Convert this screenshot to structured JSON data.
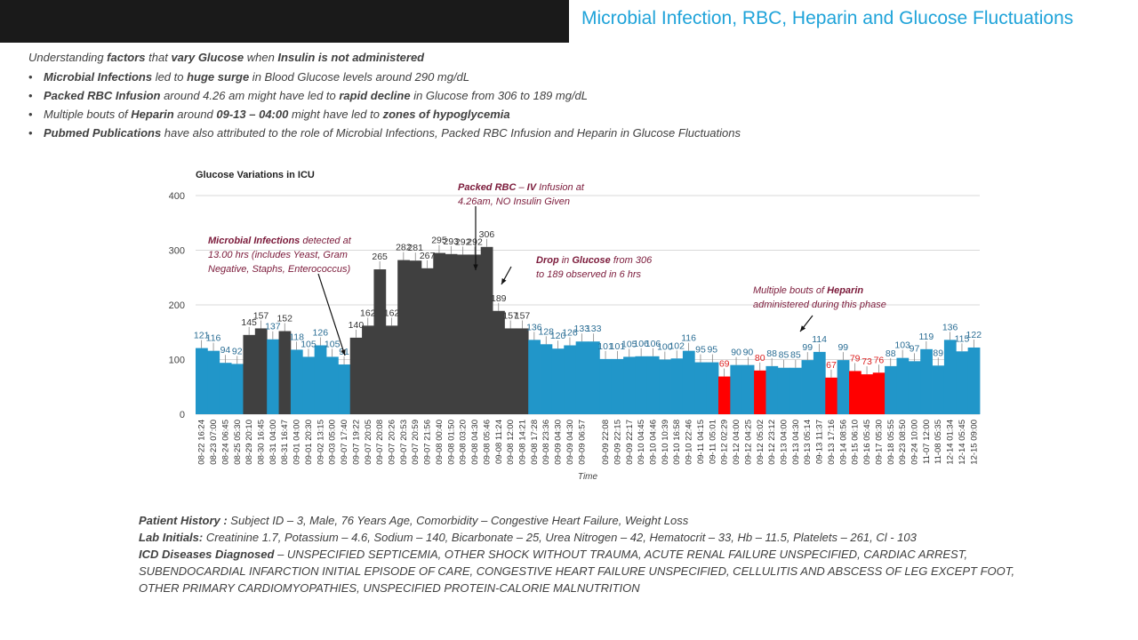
{
  "header": {
    "title": "Microbial Infection, RBC, Heparin and  Glucose Fluctuations"
  },
  "intro": [
    {
      "t": "Understanding "
    },
    {
      "t": "factors",
      "b": true
    },
    {
      "t": " that "
    },
    {
      "t": "vary Glucose",
      "b": true
    },
    {
      "t": " when "
    },
    {
      "t": "Insulin is not administered",
      "b": true
    }
  ],
  "bullets": [
    [
      {
        "t": "Microbial Infections",
        "b": true
      },
      {
        "t": " led to "
      },
      {
        "t": "huge surge",
        "b": true
      },
      {
        "t": " in Blood Glucose levels around 290 mg/dL"
      }
    ],
    [
      {
        "t": "Packed RBC Infusion",
        "b": true
      },
      {
        "t": " around 4.26 am might have led to "
      },
      {
        "t": "rapid decline",
        "b": true
      },
      {
        "t": " in Glucose from 306 to 189 mg/dL"
      }
    ],
    [
      {
        "t": "Multiple bouts of "
      },
      {
        "t": "Heparin",
        "b": true
      },
      {
        "t": " around "
      },
      {
        "t": "09-13 – 04:00",
        "b": true
      },
      {
        "t": " might have led to "
      },
      {
        "t": "zones of hypoglycemia",
        "b": true
      }
    ],
    [
      {
        "t": "Pubmed Publications",
        "b": true
      },
      {
        "t": " have also attributed to the role of Microbial Infections, Packed RBC Infusion and Heparin in Glucose Fluctuations"
      }
    ]
  ],
  "bullet_char": "•",
  "colors": {
    "title": "#1fa3d9",
    "normal": "#2196c9",
    "event": "#404040",
    "low": "#ff0000",
    "annotation": "#7b1a3a",
    "grid": "#d9d9d9"
  },
  "chart_data": {
    "type": "bar",
    "title": "Glucose Variations in ICU",
    "xlabel": "Time",
    "ylabel": "",
    "ylim": [
      0,
      400
    ],
    "yticks": [
      0,
      100,
      200,
      300,
      400
    ],
    "values": [
      121,
      116,
      94,
      92,
      145,
      157,
      137,
      152,
      118,
      105,
      126,
      105,
      91,
      140,
      162,
      265,
      162,
      282,
      281,
      267,
      295,
      293,
      292,
      292,
      306,
      189,
      157,
      157,
      136,
      128,
      120,
      126,
      133,
      133,
      101,
      101,
      105,
      106,
      106,
      100,
      102,
      116,
      95,
      95,
      69,
      90,
      90,
      80,
      88,
      85,
      85,
      99,
      114,
      67,
      99,
      79,
      73,
      76,
      88,
      103,
      97,
      119,
      89,
      136,
      115,
      122
    ],
    "value_labels": [
      "121",
      "116",
      "94",
      "92",
      "145",
      "157",
      "137",
      "152",
      "118",
      "105",
      "126",
      "105",
      "91",
      "140",
      "162",
      "265",
      "162",
      "282",
      "281",
      "267",
      "295",
      "293",
      "292",
      "292",
      "306",
      "189",
      "157",
      "157",
      "136",
      "128",
      "120",
      "126",
      "133",
      "133",
      "101",
      "101",
      "105",
      "106",
      "106",
      "100",
      "102",
      "116",
      "95",
      "95",
      "69",
      "90",
      "90",
      "80",
      "88",
      "85",
      "85",
      "99",
      "114",
      "67",
      "99",
      "79",
      "73",
      "76",
      "88",
      "103",
      "97",
      "119",
      "89",
      "136",
      "115",
      "122"
    ],
    "label_mask": [
      1,
      1,
      1,
      1,
      1,
      1,
      1,
      1,
      1,
      1,
      1,
      1,
      1,
      1,
      1,
      1,
      1,
      1,
      1,
      1,
      1,
      1,
      1,
      1,
      1,
      1,
      1,
      1,
      1,
      1,
      1,
      1,
      1,
      1,
      1,
      1,
      1,
      1,
      1,
      1,
      1,
      1,
      1,
      1,
      1,
      1,
      1,
      1,
      1,
      1,
      1,
      1,
      1,
      1,
      1,
      1,
      1,
      1,
      1,
      1,
      1,
      1,
      1,
      1,
      1,
      1
    ],
    "bar_class": [
      "n",
      "n",
      "n",
      "n",
      "e",
      "e",
      "n",
      "e",
      "n",
      "n",
      "n",
      "n",
      "n",
      "e",
      "e",
      "e",
      "e",
      "e",
      "e",
      "e",
      "e",
      "e",
      "e",
      "e",
      "e",
      "e",
      "e",
      "e",
      "n",
      "n",
      "n",
      "n",
      "n",
      "n",
      "n",
      "n",
      "n",
      "n",
      "n",
      "n",
      "n",
      "n",
      "n",
      "n",
      "r",
      "n",
      "n",
      "r",
      "n",
      "n",
      "n",
      "n",
      "n",
      "r",
      "n",
      "r",
      "r",
      "r",
      "n",
      "n",
      "n",
      "n",
      "n",
      "n",
      "n",
      "n"
    ],
    "ticks": [
      {
        "i": 0,
        "label": "08-22 16:24"
      },
      {
        "i": 1,
        "label": "08-23 07:00"
      },
      {
        "i": 2,
        "label": "08-24 06:45"
      },
      {
        "i": 3,
        "label": "08-25 05:30"
      },
      {
        "i": 4,
        "label": "08-29 20:10"
      },
      {
        "i": 5,
        "label": "08-30 16:45"
      },
      {
        "i": 6,
        "label": "08-31 04:00"
      },
      {
        "i": 7,
        "label": "08-31 16:47"
      },
      {
        "i": 8,
        "label": "09-01 04:00"
      },
      {
        "i": 9,
        "label": "09-01 20:30"
      },
      {
        "i": 10,
        "label": "09-02 13:15"
      },
      {
        "i": 11,
        "label": "09-03 05:00"
      },
      {
        "i": 12,
        "label": "09-07 17:40"
      },
      {
        "i": 13,
        "label": "09-07 19:22"
      },
      {
        "i": 14,
        "label": "09-07 20:05"
      },
      {
        "i": 15,
        "label": "09-07 20:08"
      },
      {
        "i": 16,
        "label": "09-07 20:26"
      },
      {
        "i": 17,
        "label": "09-07 20:53"
      },
      {
        "i": 18,
        "label": "09-07 20:59"
      },
      {
        "i": 19,
        "label": "09-07 21:56"
      },
      {
        "i": 20,
        "label": "09-08 00:40"
      },
      {
        "i": 21,
        "label": "09-08 01:50"
      },
      {
        "i": 22,
        "label": "09-08 03:20"
      },
      {
        "i": 23,
        "label": "09-08 04:30"
      },
      {
        "i": 24,
        "label": "09-08 05:46"
      },
      {
        "i": 25,
        "label": "09-08 11:24"
      },
      {
        "i": 26,
        "label": "09-08 12:00"
      },
      {
        "i": 27,
        "label": "09-08 14:21"
      },
      {
        "i": 28,
        "label": "09-08 17:28"
      },
      {
        "i": 29,
        "label": "09-08 23:36"
      },
      {
        "i": 30,
        "label": "09-09 04:30"
      },
      {
        "i": 31,
        "label": "09-09 04:30"
      },
      {
        "i": 32,
        "label": "09-09 06:57"
      },
      {
        "i": 34,
        "label": "09-09 22:08"
      },
      {
        "i": 35,
        "label": "09-09 22:15"
      },
      {
        "i": 36,
        "label": "09-09 22:17"
      },
      {
        "i": 37,
        "label": "09-10 04:45"
      },
      {
        "i": 38,
        "label": "09-10 04:46"
      },
      {
        "i": 39,
        "label": "09-10 10:39"
      },
      {
        "i": 40,
        "label": "09-10 16:58"
      },
      {
        "i": 41,
        "label": "09-10 22:46"
      },
      {
        "i": 42,
        "label": "09-11 04:15"
      },
      {
        "i": 43,
        "label": "09-11 05:01"
      },
      {
        "i": 44,
        "label": "09-12 02:29"
      },
      {
        "i": 45,
        "label": "09-12 04:00"
      },
      {
        "i": 46,
        "label": "09-12 04:25"
      },
      {
        "i": 47,
        "label": "09-12 05:02"
      },
      {
        "i": 48,
        "label": "09-12 23:12"
      },
      {
        "i": 49,
        "label": "09-13 04:00"
      },
      {
        "i": 50,
        "label": "09-13 04:30"
      },
      {
        "i": 51,
        "label": "09-13 05:14"
      },
      {
        "i": 52,
        "label": "09-13 11:37"
      },
      {
        "i": 53,
        "label": "09-13 17:16"
      },
      {
        "i": 54,
        "label": "09-14 08:56"
      },
      {
        "i": 55,
        "label": "09-15 06:10"
      },
      {
        "i": 56,
        "label": "09-16 05:45"
      },
      {
        "i": 57,
        "label": "09-17 05:30"
      },
      {
        "i": 58,
        "label": "09-18 05:55"
      },
      {
        "i": 59,
        "label": "09-23 08:50"
      },
      {
        "i": 60,
        "label": "09-24 10:00"
      },
      {
        "i": 61,
        "label": "11-07 12:00"
      },
      {
        "i": 62,
        "label": "11-08 05:35"
      },
      {
        "i": 63,
        "label": "12-14 01:34"
      },
      {
        "i": 64,
        "label": "12-14 05:45"
      },
      {
        "i": 65,
        "label": "12-15 09:00"
      }
    ],
    "annotations": [
      {
        "key": "rbc",
        "lines": [
          [
            {
              "t": "Packed RBC",
              "b": true
            },
            {
              "t": " – "
            },
            {
              "t": "IV",
              "b": true
            },
            {
              "t": " Infusion at"
            }
          ],
          [
            {
              "t": "4.26am, NO Insulin Given"
            }
          ]
        ]
      },
      {
        "key": "microbial",
        "lines": [
          [
            {
              "t": "Microbial Infections",
              "b": true
            },
            {
              "t": " detected at"
            }
          ],
          [
            {
              "t": "13.00 hrs (includes Yeast, Gram"
            }
          ],
          [
            {
              "t": "Negative, Staphs, Enterococcus)"
            }
          ]
        ]
      },
      {
        "key": "drop",
        "lines": [
          [
            {
              "t": "Drop",
              "b": true
            },
            {
              "t": " in "
            },
            {
              "t": "Glucose",
              "b": true
            },
            {
              "t": " from 306"
            }
          ],
          [
            {
              "t": "to 189 observed in 6 hrs"
            }
          ]
        ]
      },
      {
        "key": "heparin",
        "lines": [
          [
            {
              "t": "Multiple bouts of "
            },
            {
              "t": "Heparin",
              "b": true
            }
          ],
          [
            {
              "t": "administered during this phase"
            }
          ]
        ]
      }
    ]
  },
  "notes": {
    "history_label": "Patient History :",
    "history": " Subject ID – 3, Male, 76 Years Age, Comorbidity – Congestive Heart Failure, Weight Loss",
    "lab_label": "Lab Initials:",
    "lab": " Creatinine 1.7, Potassium – 4.6, Sodium – 140, Bicarbonate – 25, Urea Nitrogen – 42, Hematocrit – 33, Hb – 11.5, Platelets – 261, Cl - 103",
    "icd_label": "ICD Diseases Diagnosed",
    "icd_1": " – UNSPECIFIED SEPTICEMIA, OTHER SHOCK WITHOUT TRAUMA, ACUTE RENAL FAILURE UNSPECIFIED, CARDIAC ARREST,",
    "icd_2": "SUBENDOCARDIAL INFARCTION INITIAL EPISODE OF CARE, CONGESTIVE HEART FAILURE UNSPECIFIED, CELLULITIS AND ABSCESS OF LEG EXCEPT FOOT,",
    "icd_3": "OTHER PRIMARY CARDIOMYOPATHIES, UNSPECIFIED PROTEIN-CALORIE MALNUTRITION"
  }
}
